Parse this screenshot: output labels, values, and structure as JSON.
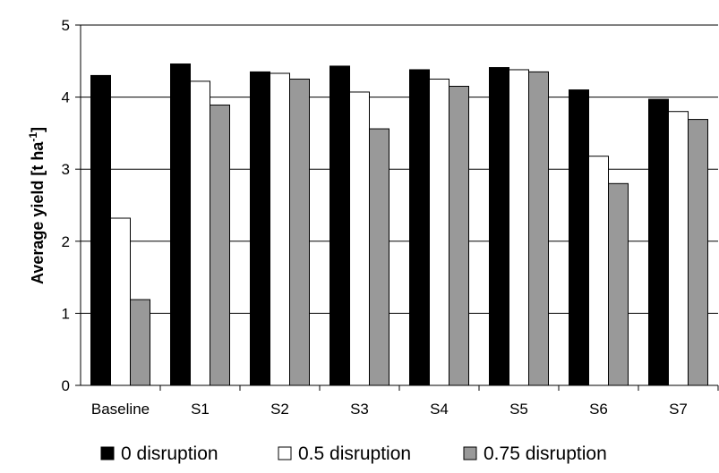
{
  "chart_data": {
    "type": "bar",
    "categories": [
      "Baseline",
      "S1",
      "S2",
      "S3",
      "S4",
      "S5",
      "S6",
      "S7"
    ],
    "series": [
      {
        "name": "0 disruption",
        "color": "#000000",
        "values": [
          4.3,
          4.46,
          4.35,
          4.43,
          4.38,
          4.41,
          4.1,
          3.97
        ]
      },
      {
        "name": "0.5 disruption",
        "color": "#ffffff",
        "values": [
          2.32,
          4.22,
          4.33,
          4.07,
          4.25,
          4.38,
          3.18,
          3.8
        ]
      },
      {
        "name": "0.75 disruption",
        "color": "#999999",
        "values": [
          1.19,
          3.89,
          4.25,
          3.56,
          4.15,
          4.35,
          2.8,
          3.69
        ]
      }
    ],
    "title": "",
    "xlabel": "",
    "ylabel": "Average yield [t ha",
    "ylabel_superscript": "-1",
    "ylabel_suffix": "]",
    "ylim": [
      0,
      5
    ],
    "yticks": [
      "0",
      "1",
      "2",
      "3",
      "4",
      "5"
    ],
    "grid": true,
    "legend_position": "bottom"
  }
}
